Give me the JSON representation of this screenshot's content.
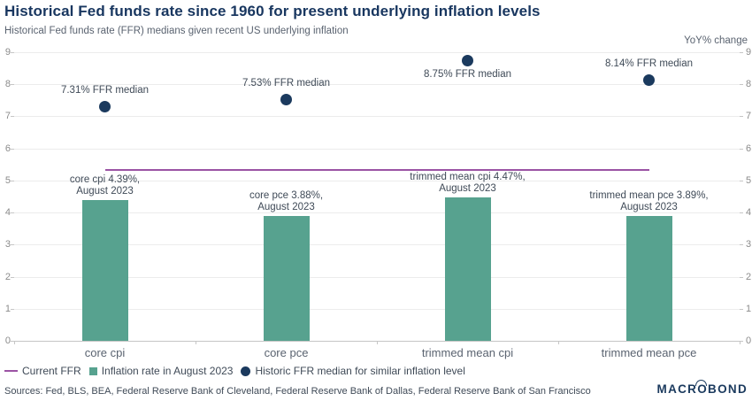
{
  "header": {
    "title": "Historical Fed funds rate since 1960 for present underlying inflation levels",
    "subtitle": "Historical Fed funds rate (FFR) medians given recent US underlying inflation"
  },
  "axis": {
    "right_unit_label": "YoY% change",
    "yticks": [
      0,
      1,
      2,
      3,
      4,
      5,
      6,
      7,
      8,
      9
    ],
    "ylim": [
      0,
      9
    ]
  },
  "chart_data": {
    "type": "bar",
    "title": "Historical Fed funds rate since 1960 for present underlying inflation levels",
    "categories": [
      "core cpi",
      "core pce",
      "trimmed mean cpi",
      "trimmed mean pce"
    ],
    "ylim": [
      0,
      9
    ],
    "yticks": [
      0,
      1,
      2,
      3,
      4,
      5,
      6,
      7,
      8,
      9
    ],
    "grid": true,
    "legend_position": "bottom",
    "series": [
      {
        "name": "Inflation rate in August 2023",
        "type": "bar",
        "color": "#57a28f",
        "values": [
          4.39,
          3.88,
          4.47,
          3.89
        ],
        "bar_labels": [
          [
            "core cpi 4.39%,",
            "August 2023"
          ],
          [
            "core pce 3.88%,",
            "August 2023"
          ],
          [
            "trimmed mean cpi 4.47%,",
            "August 2023"
          ],
          [
            "trimmed mean pce 3.89%,",
            "August 2023"
          ]
        ]
      },
      {
        "name": "Historic FFR median for similar inflation level",
        "type": "scatter",
        "color": "#1b3a5e",
        "values": [
          7.31,
          7.53,
          8.75,
          8.14
        ],
        "point_labels": [
          "7.31% FFR median",
          "7.53% FFR median",
          "8.75% FFR median",
          "8.14% FFR median"
        ],
        "label_positions": [
          "above",
          "above",
          "below",
          "above"
        ]
      },
      {
        "name": "Current FFR",
        "type": "line",
        "color": "#9b53a4",
        "value": 5.33
      }
    ]
  },
  "legend": {
    "items": [
      {
        "label": "Current FFR",
        "swatch": "line",
        "color": "#9b53a4"
      },
      {
        "label": "Inflation rate in August 2023",
        "swatch": "square",
        "color": "#57a28f"
      },
      {
        "label": "Historic FFR median for similar inflation level",
        "swatch": "circle",
        "color": "#1b3a5e"
      }
    ]
  },
  "footer": {
    "sources": "Sources: Fed, BLS, BEA, Federal Reserve Bank of Cleveland, Federal Reserve Bank of Dallas, Federal Reserve Bank of San Francisco",
    "brand_pre": "MACR",
    "brand_o": "O",
    "brand_post": "BOND"
  }
}
